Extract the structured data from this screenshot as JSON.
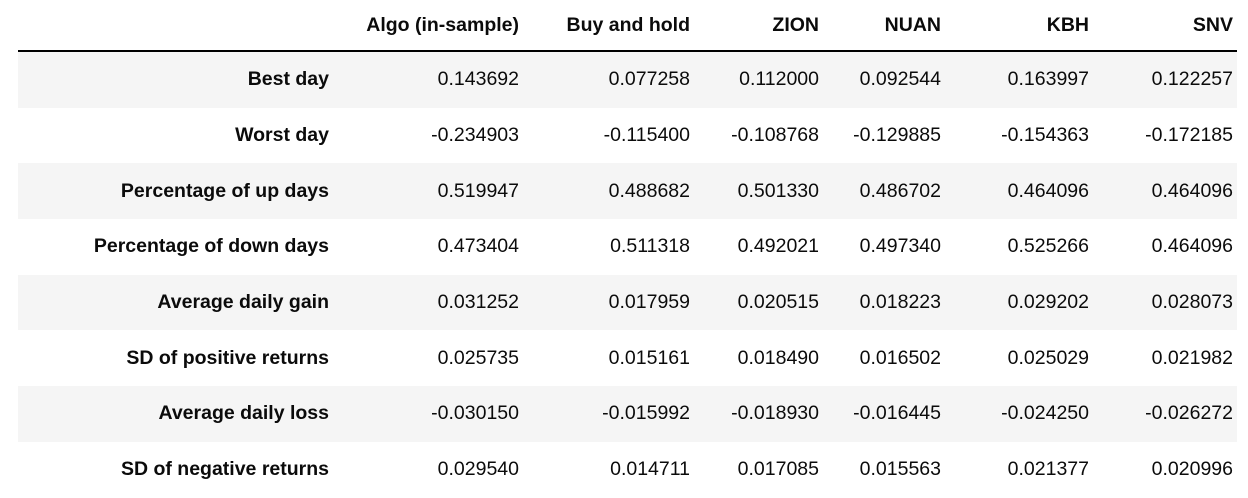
{
  "chart_data": {
    "type": "table",
    "corner_label": "",
    "columns": [
      "Algo (in-sample)",
      "Buy and hold",
      "ZION",
      "NUAN",
      "KBH",
      "SNV"
    ],
    "rows": [
      {
        "label": "Best day",
        "values": [
          "0.143692",
          "0.077258",
          "0.112000",
          "0.092544",
          "0.163997",
          "0.122257"
        ]
      },
      {
        "label": "Worst day",
        "values": [
          "-0.234903",
          "-0.115400",
          "-0.108768",
          "-0.129885",
          "-0.154363",
          "-0.172185"
        ]
      },
      {
        "label": "Percentage of up days",
        "values": [
          "0.519947",
          "0.488682",
          "0.501330",
          "0.486702",
          "0.464096",
          "0.464096"
        ]
      },
      {
        "label": "Percentage of down days",
        "values": [
          "0.473404",
          "0.511318",
          "0.492021",
          "0.497340",
          "0.525266",
          "0.464096"
        ]
      },
      {
        "label": "Average daily gain",
        "values": [
          "0.031252",
          "0.017959",
          "0.020515",
          "0.018223",
          "0.029202",
          "0.028073"
        ]
      },
      {
        "label": "SD of positive returns",
        "values": [
          "0.025735",
          "0.015161",
          "0.018490",
          "0.016502",
          "0.025029",
          "0.021982"
        ]
      },
      {
        "label": "Average daily loss",
        "values": [
          "-0.030150",
          "-0.015992",
          "-0.018930",
          "-0.016445",
          "-0.024250",
          "-0.026272"
        ]
      },
      {
        "label": "SD of negative returns",
        "values": [
          "0.029540",
          "0.014711",
          "0.017085",
          "0.015563",
          "0.021377",
          "0.020996"
        ]
      }
    ],
    "layout": {
      "stripe_color": "#f5f5f5",
      "header_rule_color": "#000000",
      "text_color": "#0b0b0b",
      "background_color": "#ffffff",
      "value_alignment": "right"
    }
  }
}
